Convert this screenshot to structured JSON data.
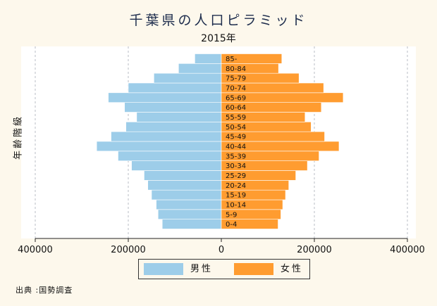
{
  "chart_data": {
    "type": "bar",
    "orientation": "horizontal",
    "chart_kind": "population-pyramid",
    "title": "千葉県の人口ピラミッド",
    "subtitle": "2015年",
    "ylabel": "年齢階級",
    "xlim": [
      -400000,
      400000
    ],
    "x_ticks": [
      {
        "value": -400000,
        "label": "400000"
      },
      {
        "value": -200000,
        "label": "200000"
      },
      {
        "value": 0,
        "label": "0"
      },
      {
        "value": 200000,
        "label": "200000"
      },
      {
        "value": 400000,
        "label": "400000"
      }
    ],
    "grid": true,
    "legend_position": "bottom",
    "categories": [
      "0-4",
      "5-9",
      "10-14",
      "15-19",
      "20-24",
      "25-29",
      "30-34",
      "35-39",
      "40-44",
      "45-49",
      "50-54",
      "55-59",
      "60-64",
      "65-69",
      "70-74",
      "75-79",
      "80-84",
      "85-"
    ],
    "series": [
      {
        "name": "男性",
        "side": "left",
        "color": "#9dcde9",
        "values": [
          127000,
          136000,
          140000,
          150000,
          158000,
          166000,
          193000,
          222000,
          268000,
          237000,
          205000,
          182000,
          208000,
          243000,
          200000,
          145000,
          92000,
          57000
        ]
      },
      {
        "name": "女性",
        "side": "right",
        "color": "#ff9c30",
        "values": [
          122000,
          128000,
          132000,
          138000,
          145000,
          160000,
          185000,
          210000,
          253000,
          222000,
          193000,
          180000,
          215000,
          262000,
          220000,
          167000,
          123000,
          130000
        ]
      }
    ]
  },
  "legend": {
    "male": "男性",
    "female": "女性"
  },
  "source": "出典 :国勢調査"
}
